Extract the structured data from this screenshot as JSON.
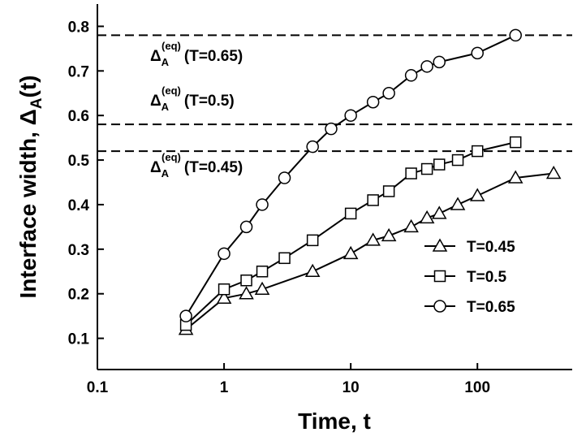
{
  "chart_data": {
    "type": "line",
    "x_label": "Time, t",
    "y_label": {
      "text": "Interface width, Δ",
      "sub": "A",
      "tail": "(t)"
    },
    "xscale": "log",
    "xlim": [
      0.1,
      560
    ],
    "xticks": [
      0.1,
      1,
      10,
      100
    ],
    "ylim": [
      0.03,
      0.85
    ],
    "yticks": [
      0.1,
      0.2,
      0.3,
      0.4,
      0.5,
      0.6,
      0.7,
      0.8
    ],
    "legend_position": "lower right",
    "reference_lines": [
      {
        "value": 0.78,
        "label": {
          "base": "Δ",
          "sub": "A",
          "sup": "(eq)",
          "text": "(T=0.65)"
        }
      },
      {
        "value": 0.58,
        "label": {
          "base": "Δ",
          "sub": "A",
          "sup": "(eq)",
          "text": "(T=0.5)"
        }
      },
      {
        "value": 0.52,
        "label": {
          "base": "Δ",
          "sub": "A",
          "sup": "(eq)",
          "text": "(T=0.45)"
        }
      }
    ],
    "series": [
      {
        "name": "T=0.45",
        "color": "#000000",
        "marker": "triangle",
        "x": [
          0.5,
          1,
          1.5,
          2,
          5,
          10,
          15,
          20,
          30,
          40,
          50,
          70,
          100,
          200,
          400
        ],
        "values": [
          0.12,
          0.19,
          0.2,
          0.21,
          0.25,
          0.29,
          0.32,
          0.33,
          0.35,
          0.37,
          0.38,
          0.4,
          0.42,
          0.46,
          0.47
        ]
      },
      {
        "name": "T=0.5",
        "color": "#000000",
        "marker": "square",
        "x": [
          0.5,
          1,
          1.5,
          2,
          3,
          5,
          10,
          15,
          20,
          30,
          40,
          50,
          70,
          100,
          200
        ],
        "values": [
          0.13,
          0.21,
          0.23,
          0.25,
          0.28,
          0.32,
          0.38,
          0.41,
          0.43,
          0.47,
          0.48,
          0.49,
          0.5,
          0.52,
          0.54
        ]
      },
      {
        "name": "T=0.65",
        "color": "#000000",
        "marker": "circle",
        "x": [
          0.5,
          1,
          1.5,
          2,
          3,
          5,
          7,
          10,
          15,
          20,
          30,
          40,
          50,
          100,
          200
        ],
        "values": [
          0.15,
          0.29,
          0.35,
          0.4,
          0.46,
          0.53,
          0.57,
          0.6,
          0.63,
          0.65,
          0.69,
          0.71,
          0.72,
          0.74,
          0.78
        ]
      }
    ]
  }
}
